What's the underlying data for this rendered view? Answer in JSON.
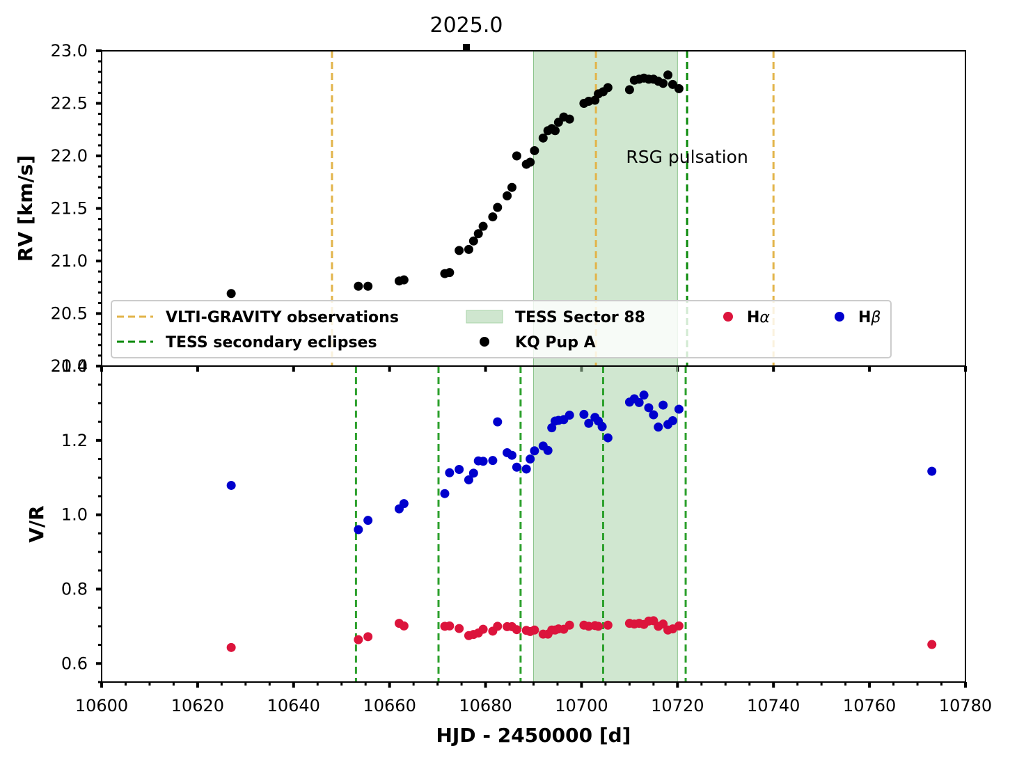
{
  "chart_data": [
    {
      "type": "scatter",
      "panel": "top",
      "ylabel": "RV [km/s]",
      "xlim": [
        10600,
        10780
      ],
      "ylim": [
        20.0,
        23.0
      ],
      "xticks": [
        10600,
        10620,
        10640,
        10660,
        10680,
        10700,
        10720,
        10740,
        10760,
        10780
      ],
      "yticks": [
        20.0,
        20.5,
        21.0,
        21.5,
        22.0,
        22.5,
        23.0
      ],
      "ytick_labels": [
        "20.0",
        "20.5",
        "21.0",
        "21.5",
        "22.0",
        "22.5",
        "23.0"
      ],
      "top_axis": {
        "value": 10676,
        "label": "2025.0"
      },
      "annotation": {
        "text": "RSG pulsation",
        "x": 10710,
        "y": 21.8
      },
      "shaded_region": {
        "label": "TESS Sector 88",
        "x0": 10690,
        "x1": 10720,
        "color": "#a9d4a9"
      },
      "vlines": [
        {
          "label": "VLTI-GRAVITY observations",
          "color": "#e2b44a",
          "x": [
            10648,
            10703,
            10740
          ]
        },
        {
          "label": "TESS secondary eclipses",
          "color": "#0a8a0a",
          "x": [
            10722
          ]
        }
      ],
      "series": [
        {
          "name": "KQ Pup A",
          "color": "#000000",
          "points": [
            [
              10627,
              20.69
            ],
            [
              10653.5,
              20.76
            ],
            [
              10655.5,
              20.76
            ],
            [
              10662,
              20.81
            ],
            [
              10663,
              20.82
            ],
            [
              10671.5,
              20.88
            ],
            [
              10672.5,
              20.89
            ],
            [
              10674.5,
              21.1
            ],
            [
              10676.5,
              21.11
            ],
            [
              10677.5,
              21.19
            ],
            [
              10678.5,
              21.26
            ],
            [
              10679.5,
              21.33
            ],
            [
              10681.5,
              21.42
            ],
            [
              10682.5,
              21.51
            ],
            [
              10684.5,
              21.62
            ],
            [
              10685.5,
              21.7
            ],
            [
              10686.5,
              22.0
            ],
            [
              10688.5,
              21.92
            ],
            [
              10689.3,
              21.94
            ],
            [
              10690.2,
              22.05
            ],
            [
              10692,
              22.17
            ],
            [
              10693,
              22.24
            ],
            [
              10693.8,
              22.26
            ],
            [
              10694.5,
              22.24
            ],
            [
              10695.2,
              22.32
            ],
            [
              10696.3,
              22.37
            ],
            [
              10697.5,
              22.35
            ],
            [
              10700.5,
              22.5
            ],
            [
              10701.5,
              22.52
            ],
            [
              10702.8,
              22.53
            ],
            [
              10703.5,
              22.59
            ],
            [
              10704.5,
              22.61
            ],
            [
              10705.5,
              22.65
            ],
            [
              10710,
              22.63
            ],
            [
              10711,
              22.72
            ],
            [
              10712,
              22.73
            ],
            [
              10713,
              22.74
            ],
            [
              10714,
              22.73
            ],
            [
              10715,
              22.73
            ],
            [
              10716,
              22.71
            ],
            [
              10717,
              22.69
            ],
            [
              10718,
              22.77
            ],
            [
              10719,
              22.68
            ],
            [
              10720.3,
              22.64
            ]
          ]
        }
      ],
      "legend": {
        "placement": "lower center",
        "entries": [
          {
            "label": "VLTI-GRAVITY observations",
            "kind": "dashed",
            "color": "#e2b44a"
          },
          {
            "label": "TESS secondary eclipses",
            "kind": "dashed",
            "color": "#0a8a0a"
          },
          {
            "label": "TESS Sector 88",
            "kind": "patch",
            "color": "#cfe6cf"
          },
          {
            "label": "KQ Pup A",
            "kind": "marker",
            "color": "#000000"
          },
          {
            "label": "H",
            "label_greek": "α",
            "kind": "marker",
            "color": "#dc143c"
          },
          {
            "label": "H",
            "label_greek": "β",
            "kind": "marker",
            "color": "#0000cd"
          }
        ]
      }
    },
    {
      "type": "scatter",
      "panel": "bottom",
      "ylabel": "V/R",
      "xlabel": "HJD - 2450000 [d]",
      "xlim": [
        10600,
        10780
      ],
      "ylim": [
        0.55,
        1.4
      ],
      "xticks": [
        10600,
        10620,
        10640,
        10660,
        10680,
        10700,
        10720,
        10740,
        10760,
        10780
      ],
      "xtick_labels": [
        "10600",
        "10620",
        "10640",
        "10660",
        "10680",
        "10700",
        "10720",
        "10740",
        "10760",
        "10780"
      ],
      "yticks": [
        0.6,
        0.8,
        1.0,
        1.2,
        1.4
      ],
      "ytick_labels": [
        "0.6",
        "0.8",
        "1.0",
        "1.2",
        "1.4"
      ],
      "shaded_region": {
        "x0": 10690,
        "x1": 10720,
        "color": "#a9d4a9"
      },
      "vlines": [
        {
          "label": "TESS secondary eclipses",
          "color": "#2ca02c",
          "x": [
            10653,
            10670.2,
            10687.3,
            10704.5,
            10721.7
          ]
        }
      ],
      "series": [
        {
          "name": "Hα",
          "color": "#dc143c",
          "points": [
            [
              10627,
              0.643
            ],
            [
              10653.5,
              0.664
            ],
            [
              10655.5,
              0.672
            ],
            [
              10662,
              0.708
            ],
            [
              10663,
              0.701
            ],
            [
              10671.5,
              0.7
            ],
            [
              10672.5,
              0.701
            ],
            [
              10674.5,
              0.694
            ],
            [
              10676.5,
              0.675
            ],
            [
              10677.5,
              0.678
            ],
            [
              10678.5,
              0.682
            ],
            [
              10679.5,
              0.692
            ],
            [
              10681.5,
              0.687
            ],
            [
              10682.5,
              0.7
            ],
            [
              10684.5,
              0.699
            ],
            [
              10685.5,
              0.699
            ],
            [
              10686.5,
              0.691
            ],
            [
              10688.5,
              0.689
            ],
            [
              10689.3,
              0.686
            ],
            [
              10690.2,
              0.69
            ],
            [
              10692,
              0.679
            ],
            [
              10693,
              0.679
            ],
            [
              10693.8,
              0.69
            ],
            [
              10694.5,
              0.69
            ],
            [
              10695.2,
              0.693
            ],
            [
              10696.3,
              0.692
            ],
            [
              10697.5,
              0.703
            ],
            [
              10700.5,
              0.703
            ],
            [
              10701.5,
              0.7
            ],
            [
              10702.8,
              0.702
            ],
            [
              10703.5,
              0.7
            ],
            [
              10705.5,
              0.703
            ],
            [
              10710,
              0.708
            ],
            [
              10711,
              0.706
            ],
            [
              10712,
              0.708
            ],
            [
              10713,
              0.705
            ],
            [
              10714,
              0.714
            ],
            [
              10715,
              0.715
            ],
            [
              10716,
              0.7
            ],
            [
              10717,
              0.706
            ],
            [
              10718,
              0.69
            ],
            [
              10719,
              0.693
            ],
            [
              10720.3,
              0.701
            ],
            [
              10773,
              0.651
            ]
          ]
        },
        {
          "name": "Hβ",
          "color": "#0000cd",
          "points": [
            [
              10627,
              1.079
            ],
            [
              10653.5,
              0.96
            ],
            [
              10655.5,
              0.985
            ],
            [
              10662,
              1.016
            ],
            [
              10663,
              1.03
            ],
            [
              10671.5,
              1.057
            ],
            [
              10672.5,
              1.113
            ],
            [
              10674.5,
              1.122
            ],
            [
              10676.5,
              1.094
            ],
            [
              10677.5,
              1.112
            ],
            [
              10678.5,
              1.145
            ],
            [
              10679.5,
              1.144
            ],
            [
              10681.5,
              1.146
            ],
            [
              10682.5,
              1.25
            ],
            [
              10684.5,
              1.167
            ],
            [
              10685.5,
              1.16
            ],
            [
              10686.5,
              1.128
            ],
            [
              10688.5,
              1.123
            ],
            [
              10689.3,
              1.15
            ],
            [
              10690.2,
              1.172
            ],
            [
              10692,
              1.185
            ],
            [
              10693,
              1.173
            ],
            [
              10693.8,
              1.234
            ],
            [
              10694.5,
              1.252
            ],
            [
              10695.2,
              1.254
            ],
            [
              10696.3,
              1.256
            ],
            [
              10697.5,
              1.268
            ],
            [
              10700.5,
              1.27
            ],
            [
              10701.5,
              1.246
            ],
            [
              10702.8,
              1.262
            ],
            [
              10703.5,
              1.252
            ],
            [
              10704.3,
              1.237
            ],
            [
              10705.5,
              1.207
            ],
            [
              10710,
              1.303
            ],
            [
              10711,
              1.312
            ],
            [
              10712,
              1.302
            ],
            [
              10713,
              1.322
            ],
            [
              10714,
              1.288
            ],
            [
              10715,
              1.269
            ],
            [
              10716,
              1.236
            ],
            [
              10717,
              1.295
            ],
            [
              10718,
              1.243
            ],
            [
              10719,
              1.253
            ],
            [
              10720.3,
              1.284
            ],
            [
              10773,
              1.117
            ]
          ]
        }
      ]
    }
  ]
}
